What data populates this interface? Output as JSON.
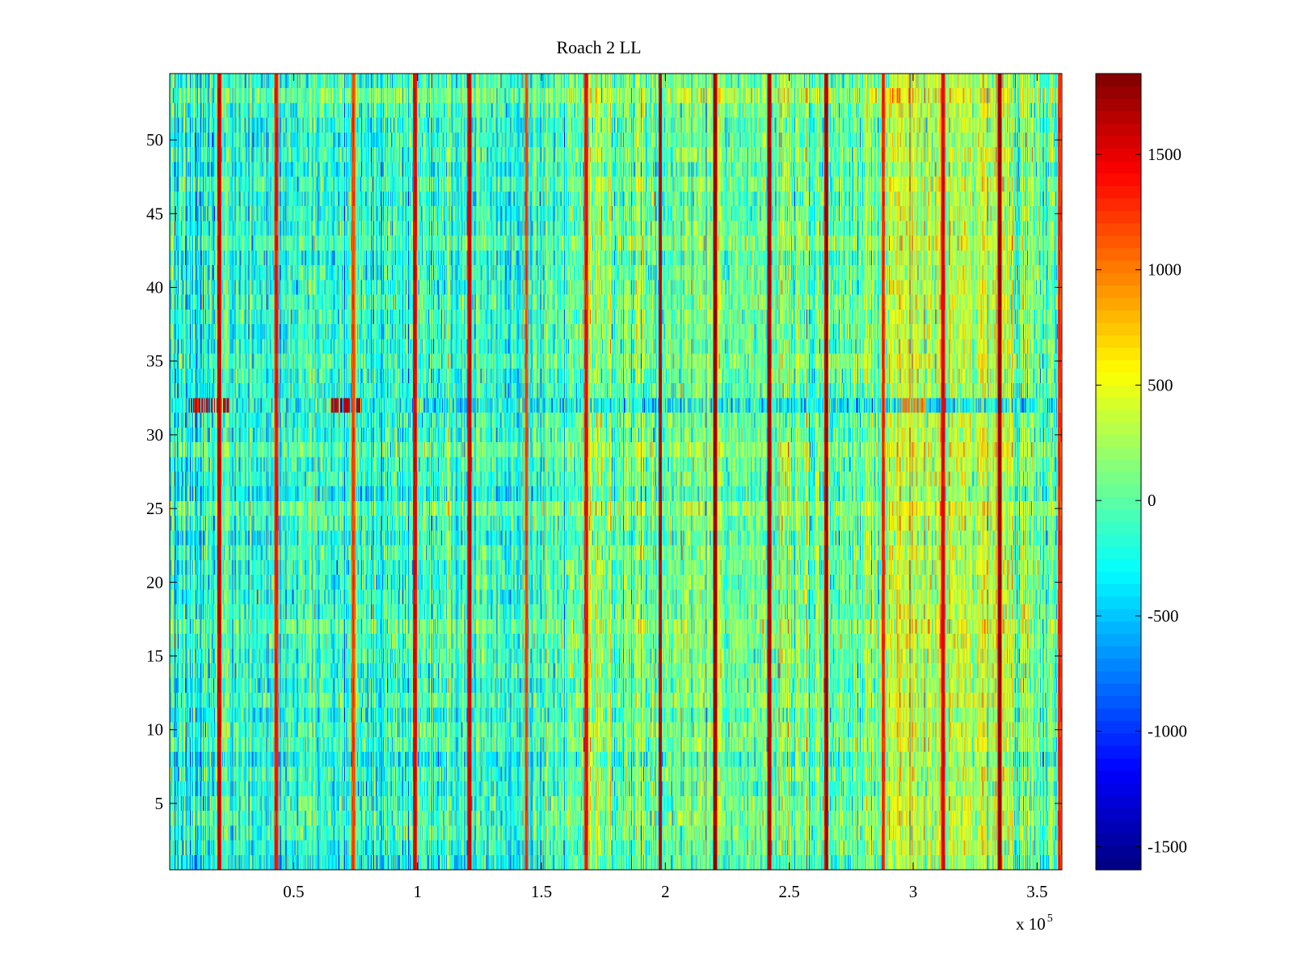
{
  "chart_data": {
    "type": "heatmap",
    "title": "Roach 2 LL",
    "xlabel": "",
    "ylabel": "",
    "x_scale_label": "x 10",
    "x_scale_exponent": "5",
    "xlim": [
      0,
      3.6
    ],
    "ylim": [
      0.5,
      54.5
    ],
    "x_ticks": [
      0.5,
      1,
      1.5,
      2,
      2.5,
      3,
      3.5
    ],
    "x_tick_labels": [
      "0.5",
      "1",
      "1.5",
      "2",
      "2.5",
      "3",
      "3.5"
    ],
    "y_ticks": [
      5,
      10,
      15,
      20,
      25,
      30,
      35,
      40,
      45,
      50
    ],
    "y_tick_labels": [
      "5",
      "10",
      "15",
      "20",
      "25",
      "30",
      "35",
      "40",
      "45",
      "50"
    ],
    "rows": 54,
    "colormap": "jet",
    "color_range": [
      -1600,
      1850
    ],
    "colorbar_ticks": [
      -1500,
      -1000,
      -500,
      0,
      500,
      1000,
      1500
    ],
    "colorbar_tick_labels": [
      "-1500",
      "-1000",
      "-500",
      "0",
      "500",
      "1000",
      "1500"
    ],
    "background_level_mean": -150,
    "background_noise_std": 330,
    "vertical_stripes": [
      {
        "x": 0.2,
        "value": 1700
      },
      {
        "x": 0.43,
        "value": 1500
      },
      {
        "x": 0.74,
        "value": 1300
      },
      {
        "x": 0.99,
        "value": 1600
      },
      {
        "x": 1.21,
        "value": 1700
      },
      {
        "x": 1.44,
        "value": 1300
      },
      {
        "x": 1.68,
        "value": 1500
      },
      {
        "x": 1.98,
        "value": 1700
      },
      {
        "x": 2.2,
        "value": 1850
      },
      {
        "x": 2.42,
        "value": 1800
      },
      {
        "x": 2.65,
        "value": 1800
      },
      {
        "x": 2.88,
        "value": 1400
      },
      {
        "x": 3.12,
        "value": 1600
      },
      {
        "x": 3.35,
        "value": 1850
      },
      {
        "x": 3.59,
        "value": 1400
      }
    ],
    "warm_regions": [
      {
        "x_range": [
          1.6,
          3.6
        ],
        "offset": 250
      },
      {
        "x_range": [
          2.9,
          3.4
        ],
        "offset": 350
      }
    ],
    "highlighted_row": {
      "row": 32,
      "mean_value": -300,
      "hot_segments": [
        {
          "x_range": [
            0.08,
            0.24
          ],
          "value": 1600
        },
        {
          "x_range": [
            0.65,
            0.77
          ],
          "value": 1700
        },
        {
          "x_range": [
            2.95,
            3.05
          ],
          "value": 1000
        }
      ]
    }
  }
}
